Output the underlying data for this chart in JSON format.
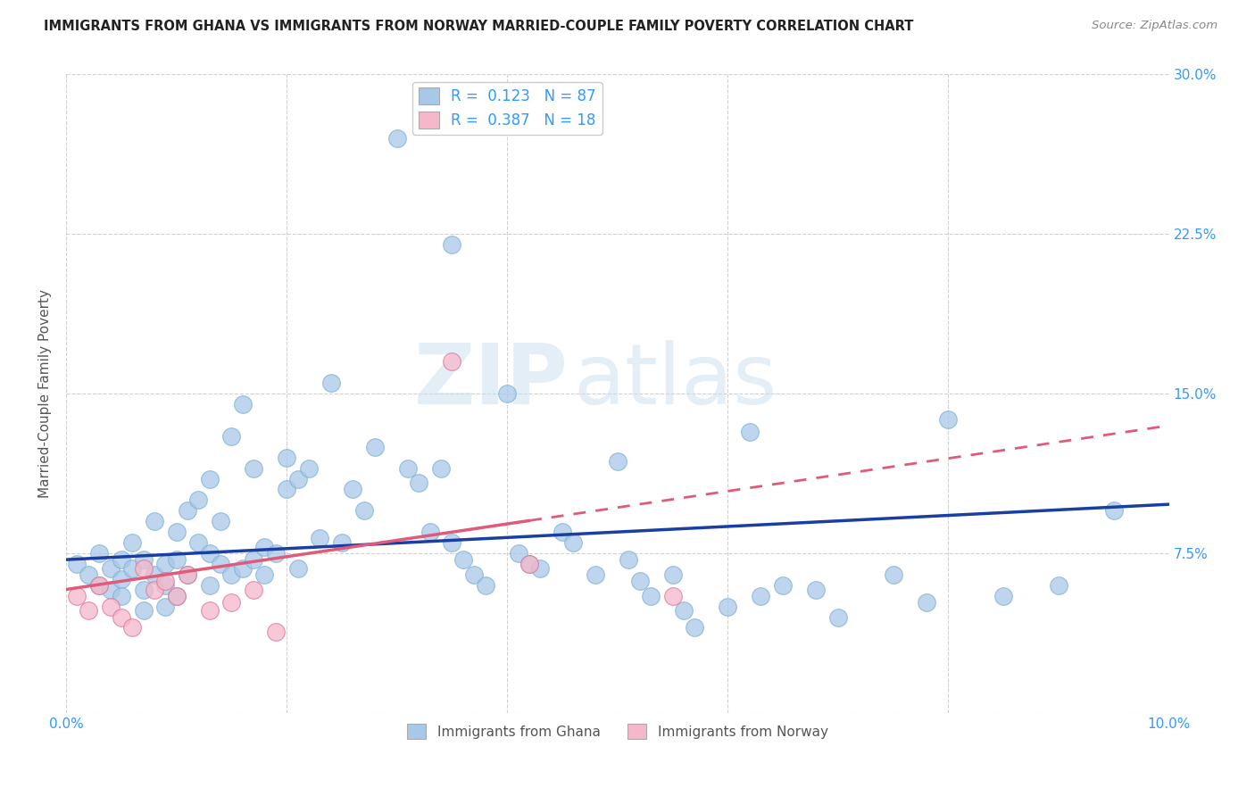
{
  "title": "IMMIGRANTS FROM GHANA VS IMMIGRANTS FROM NORWAY MARRIED-COUPLE FAMILY POVERTY CORRELATION CHART",
  "source": "Source: ZipAtlas.com",
  "ylabel": "Married-Couple Family Poverty",
  "x_min": 0.0,
  "x_max": 0.1,
  "y_min": 0.0,
  "y_max": 0.3,
  "x_ticks": [
    0.0,
    0.02,
    0.04,
    0.06,
    0.08,
    0.1
  ],
  "y_ticks": [
    0.0,
    0.075,
    0.15,
    0.225,
    0.3
  ],
  "ghana_color_fill": "#a8c8e8",
  "ghana_color_edge": "#7aafd4",
  "norway_color_fill": "#f5b8cb",
  "norway_color_edge": "#e07090",
  "ghana_line_color": "#1a3fa3",
  "norway_line_color": "#e05a7a",
  "ghana_R": 0.123,
  "ghana_N": 87,
  "norway_R": 0.387,
  "norway_N": 18,
  "watermark_zip": "ZIP",
  "watermark_atlas": "atlas",
  "legend_text_color": "#3399ff",
  "ghana_trend_x0": 0.0,
  "ghana_trend_x1": 0.1,
  "ghana_trend_y0": 0.072,
  "ghana_trend_y1": 0.098,
  "norway_trend_x0": 0.0,
  "norway_trend_x1": 0.1,
  "norway_trend_y0": 0.058,
  "norway_trend_y1": 0.135,
  "ghana_scatter_x": [
    0.001,
    0.002,
    0.003,
    0.003,
    0.004,
    0.004,
    0.005,
    0.005,
    0.005,
    0.006,
    0.006,
    0.007,
    0.007,
    0.007,
    0.008,
    0.008,
    0.009,
    0.009,
    0.009,
    0.01,
    0.01,
    0.01,
    0.011,
    0.011,
    0.012,
    0.012,
    0.013,
    0.013,
    0.013,
    0.014,
    0.014,
    0.015,
    0.015,
    0.016,
    0.016,
    0.017,
    0.017,
    0.018,
    0.018,
    0.019,
    0.02,
    0.02,
    0.021,
    0.021,
    0.022,
    0.023,
    0.024,
    0.025,
    0.026,
    0.027,
    0.028,
    0.03,
    0.031,
    0.032,
    0.033,
    0.034,
    0.035,
    0.035,
    0.036,
    0.037,
    0.038,
    0.04,
    0.041,
    0.042,
    0.043,
    0.045,
    0.046,
    0.048,
    0.05,
    0.051,
    0.052,
    0.053,
    0.055,
    0.056,
    0.057,
    0.06,
    0.062,
    0.063,
    0.065,
    0.068,
    0.07,
    0.075,
    0.078,
    0.08,
    0.085,
    0.09,
    0.095
  ],
  "ghana_scatter_y": [
    0.07,
    0.065,
    0.06,
    0.075,
    0.068,
    0.058,
    0.072,
    0.063,
    0.055,
    0.08,
    0.068,
    0.072,
    0.058,
    0.048,
    0.09,
    0.065,
    0.07,
    0.06,
    0.05,
    0.085,
    0.072,
    0.055,
    0.095,
    0.065,
    0.1,
    0.08,
    0.11,
    0.075,
    0.06,
    0.09,
    0.07,
    0.13,
    0.065,
    0.145,
    0.068,
    0.115,
    0.072,
    0.078,
    0.065,
    0.075,
    0.12,
    0.105,
    0.11,
    0.068,
    0.115,
    0.082,
    0.155,
    0.08,
    0.105,
    0.095,
    0.125,
    0.27,
    0.115,
    0.108,
    0.085,
    0.115,
    0.08,
    0.22,
    0.072,
    0.065,
    0.06,
    0.15,
    0.075,
    0.07,
    0.068,
    0.085,
    0.08,
    0.065,
    0.118,
    0.072,
    0.062,
    0.055,
    0.065,
    0.048,
    0.04,
    0.05,
    0.132,
    0.055,
    0.06,
    0.058,
    0.045,
    0.065,
    0.052,
    0.138,
    0.055,
    0.06,
    0.095
  ],
  "norway_scatter_x": [
    0.001,
    0.002,
    0.003,
    0.004,
    0.005,
    0.006,
    0.007,
    0.008,
    0.009,
    0.01,
    0.011,
    0.013,
    0.015,
    0.017,
    0.019,
    0.035,
    0.042,
    0.055
  ],
  "norway_scatter_y": [
    0.055,
    0.048,
    0.06,
    0.05,
    0.045,
    0.04,
    0.068,
    0.058,
    0.062,
    0.055,
    0.065,
    0.048,
    0.052,
    0.058,
    0.038,
    0.165,
    0.07,
    0.055
  ]
}
